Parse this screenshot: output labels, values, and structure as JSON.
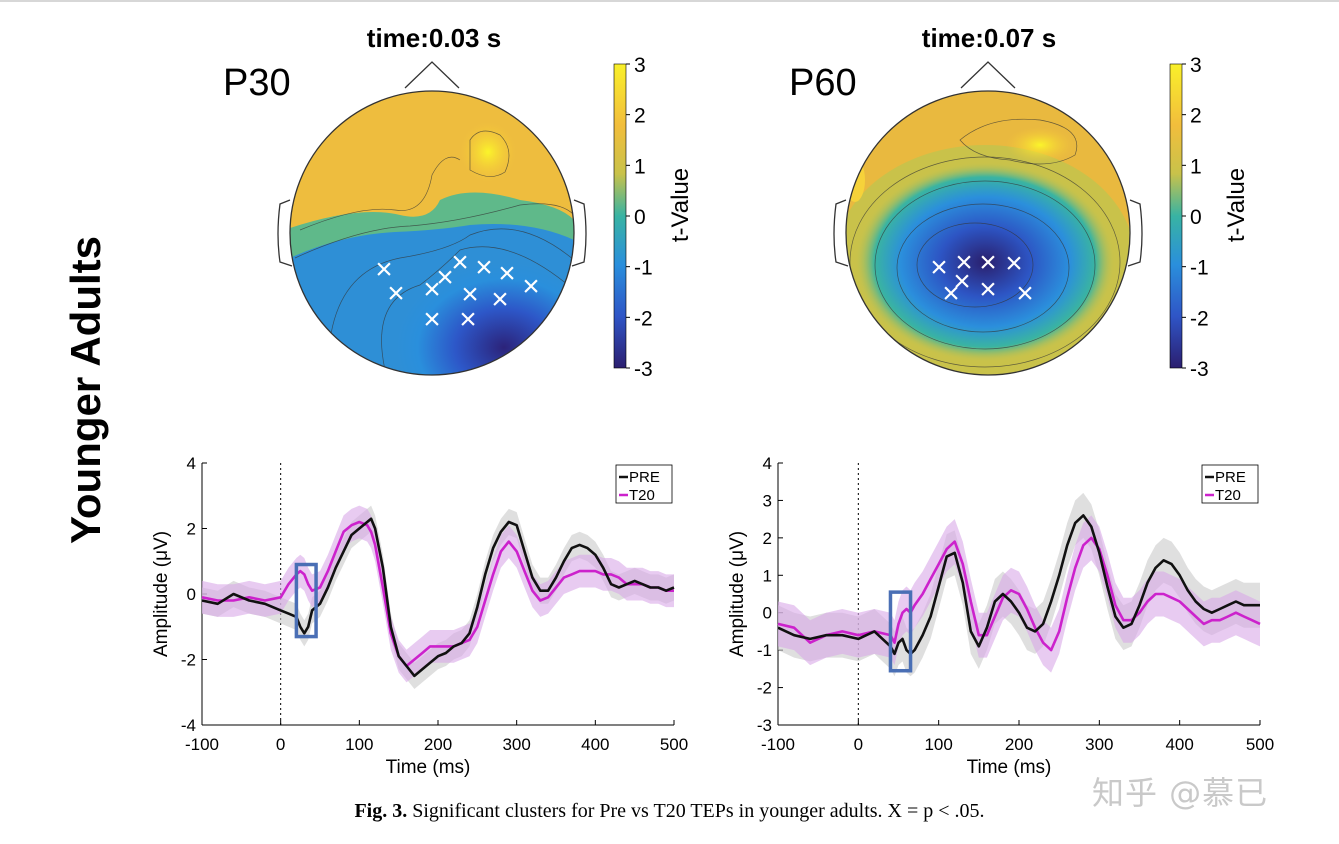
{
  "row_label": "Younger Adults",
  "colorbar": {
    "label": "t-Value",
    "ticks": [
      "3",
      "2",
      "1",
      "0",
      "-1",
      "-2",
      "-3"
    ],
    "colors": [
      "#f9e52c",
      "#f0b73a",
      "#c4c248",
      "#3bb59b",
      "#2b86d8",
      "#2c4ec0",
      "#2c237a"
    ]
  },
  "topomaps": [
    {
      "time_title": "time:0.03 s",
      "component": "P30",
      "significant_marker": "×",
      "significant_count": 12
    },
    {
      "time_title": "time:0.07 s",
      "component": "P60",
      "significant_marker": "×",
      "significant_count": 8
    }
  ],
  "colors": {
    "pre": "#111111",
    "t20": "#cc22cc",
    "highlight_box": "#4a6fb5",
    "pre_band": "#c9c9c9",
    "t20_band": "#d8a8e8"
  },
  "chart_data": [
    {
      "type": "line",
      "xlabel": "Time (ms)",
      "ylabel": "Amplitude (μV)",
      "xlim": [
        -100,
        500
      ],
      "ylim": [
        -4,
        4
      ],
      "xticks": [
        "-100",
        "0",
        "100",
        "200",
        "300",
        "400",
        "500"
      ],
      "yticks": [
        "4",
        "2",
        "0",
        "-2",
        "-4"
      ],
      "highlight_window_ms": [
        20,
        45
      ],
      "stimulus_line_ms": 0,
      "x": [
        -100,
        -80,
        -60,
        -40,
        -20,
        0,
        10,
        20,
        25,
        30,
        35,
        40,
        50,
        60,
        70,
        80,
        90,
        100,
        110,
        115,
        120,
        130,
        140,
        150,
        160,
        170,
        180,
        190,
        200,
        210,
        220,
        230,
        240,
        250,
        260,
        270,
        280,
        290,
        300,
        310,
        320,
        330,
        340,
        350,
        360,
        370,
        380,
        390,
        400,
        410,
        420,
        430,
        440,
        450,
        460,
        470,
        480,
        490,
        500
      ],
      "series": [
        {
          "name": "PRE",
          "values": [
            -0.2,
            -0.3,
            0.0,
            -0.2,
            -0.3,
            -0.5,
            -0.6,
            -0.7,
            -1.0,
            -1.2,
            -1.0,
            -0.5,
            -0.3,
            0.2,
            0.8,
            1.3,
            1.8,
            2.0,
            2.2,
            2.3,
            2.0,
            0.8,
            -1.0,
            -1.9,
            -2.2,
            -2.5,
            -2.3,
            -2.1,
            -1.9,
            -1.8,
            -1.6,
            -1.5,
            -1.2,
            -0.4,
            0.6,
            1.4,
            1.9,
            2.2,
            2.1,
            1.3,
            0.5,
            0.1,
            0.1,
            0.5,
            1.0,
            1.4,
            1.5,
            1.4,
            1.2,
            0.8,
            0.3,
            0.2,
            0.3,
            0.4,
            0.3,
            0.2,
            0.2,
            0.1,
            0.2
          ],
          "band": 0.4
        },
        {
          "name": "T20",
          "values": [
            -0.1,
            -0.2,
            -0.2,
            -0.1,
            -0.2,
            -0.1,
            0.3,
            0.6,
            0.7,
            0.6,
            0.3,
            0.1,
            0.2,
            0.7,
            1.3,
            1.9,
            2.1,
            2.2,
            2.1,
            1.9,
            1.5,
            0.2,
            -1.2,
            -1.9,
            -2.2,
            -2.0,
            -1.8,
            -1.6,
            -1.6,
            -1.6,
            -1.6,
            -1.5,
            -1.4,
            -1.0,
            -0.2,
            0.6,
            1.3,
            1.6,
            1.3,
            0.7,
            0.1,
            -0.2,
            -0.1,
            0.2,
            0.5,
            0.6,
            0.7,
            0.7,
            0.7,
            0.6,
            0.6,
            0.5,
            0.3,
            0.3,
            0.3,
            0.2,
            0.2,
            0.1,
            0.1
          ],
          "band": 0.5
        }
      ]
    },
    {
      "type": "line",
      "xlabel": "Time (ms)",
      "ylabel": "Amplitude (μV)",
      "xlim": [
        -100,
        500
      ],
      "ylim": [
        -3,
        4
      ],
      "xticks": [
        "-100",
        "0",
        "100",
        "200",
        "300",
        "400",
        "500"
      ],
      "yticks": [
        "4",
        "3",
        "2",
        "1",
        "0",
        "-1",
        "-2",
        "-3"
      ],
      "highlight_window_ms": [
        40,
        65
      ],
      "stimulus_line_ms": 0,
      "x": [
        -100,
        -80,
        -60,
        -40,
        -20,
        0,
        20,
        40,
        45,
        50,
        55,
        60,
        65,
        70,
        80,
        90,
        100,
        110,
        120,
        130,
        140,
        150,
        160,
        170,
        180,
        190,
        200,
        210,
        220,
        230,
        240,
        250,
        260,
        270,
        280,
        290,
        300,
        310,
        320,
        330,
        340,
        350,
        360,
        370,
        380,
        390,
        400,
        410,
        420,
        430,
        440,
        450,
        460,
        470,
        480,
        490,
        500
      ],
      "series": [
        {
          "name": "PRE",
          "values": [
            -0.4,
            -0.6,
            -0.7,
            -0.6,
            -0.6,
            -0.7,
            -0.5,
            -0.9,
            -1.1,
            -0.8,
            -0.7,
            -1.0,
            -1.1,
            -1.0,
            -0.6,
            -0.1,
            0.7,
            1.5,
            1.6,
            0.8,
            -0.5,
            -0.9,
            -0.4,
            0.3,
            0.5,
            0.3,
            0.0,
            -0.4,
            -0.5,
            -0.3,
            0.3,
            1.0,
            1.8,
            2.4,
            2.6,
            2.3,
            1.6,
            0.7,
            -0.1,
            -0.4,
            -0.3,
            0.2,
            0.8,
            1.2,
            1.4,
            1.3,
            1.0,
            0.6,
            0.3,
            0.1,
            0.0,
            0.1,
            0.2,
            0.3,
            0.2,
            0.2,
            0.2
          ],
          "band": 0.6
        },
        {
          "name": "T20",
          "values": [
            -0.3,
            -0.4,
            -0.8,
            -0.6,
            -0.5,
            -0.6,
            -0.5,
            -0.6,
            -0.8,
            -0.3,
            0.0,
            0.1,
            0.0,
            0.2,
            0.5,
            0.9,
            1.3,
            1.7,
            1.9,
            1.3,
            0.3,
            -0.6,
            -0.6,
            -0.1,
            0.4,
            0.6,
            0.5,
            0.1,
            -0.4,
            -0.8,
            -1.0,
            -0.5,
            0.4,
            1.2,
            1.8,
            2.0,
            1.7,
            1.0,
            0.2,
            -0.2,
            -0.2,
            0.0,
            0.3,
            0.5,
            0.5,
            0.4,
            0.3,
            0.1,
            -0.1,
            -0.3,
            -0.2,
            -0.2,
            -0.1,
            0.0,
            -0.1,
            -0.2,
            -0.3
          ],
          "band": 0.6
        }
      ]
    }
  ],
  "caption": {
    "label": "Fig. 3.",
    "text": " Significant clusters for Pre vs T20 TEPs in younger adults. X = p < .05."
  },
  "watermark": "知乎 @慕已"
}
